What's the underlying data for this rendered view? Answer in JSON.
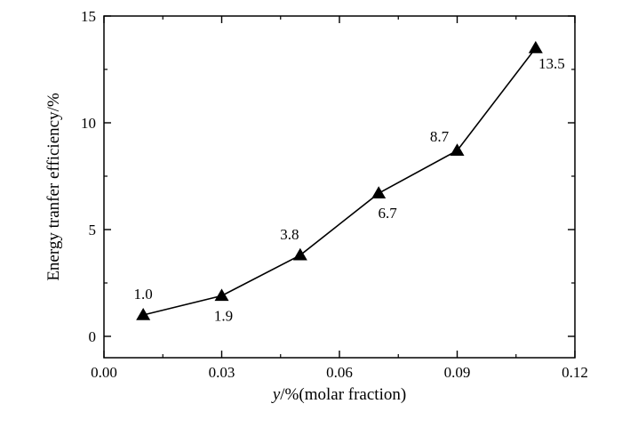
{
  "chart_data": {
    "type": "line",
    "x": [
      0.01,
      0.03,
      0.05,
      0.07,
      0.09,
      0.11
    ],
    "series": [
      {
        "values": [
          1.0,
          1.9,
          3.8,
          6.7,
          8.7,
          13.5
        ]
      }
    ],
    "data_labels": [
      "1.0",
      "1.9",
      "3.8",
      "6.7",
      "8.7",
      "13.5"
    ],
    "marker": "filled-triangle",
    "xlabel_italic": "y",
    "xlabel_rest": "/%(molar fraction)",
    "ylabel": "Energy tranfer efficiency/%",
    "xlim": [
      0.0,
      0.12
    ],
    "ylim": [
      -1,
      15
    ],
    "xticks": [
      0.0,
      0.03,
      0.06,
      0.09,
      0.12
    ],
    "xtick_labels": [
      "0.00",
      "0.03",
      "0.06",
      "0.09",
      "0.12"
    ],
    "yticks": [
      0,
      5,
      10,
      15
    ],
    "ytick_labels": [
      "0",
      "5",
      "10",
      "15"
    ],
    "grid": false
  }
}
